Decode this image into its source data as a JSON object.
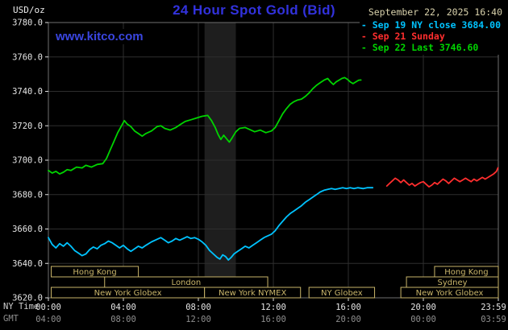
{
  "header": {
    "units": "USD/oz",
    "title": "24 Hour Spot Gold (Bid)",
    "datetime": "September 22, 2025 16:40",
    "watermark": "www.kitco.com"
  },
  "legend": [
    {
      "label": "Sep 19 NY close 3684.00",
      "color": "#00c3ff"
    },
    {
      "label": "Sep 21 Sunday",
      "color": "#ff2e2e"
    },
    {
      "label": "Sep 22 Last 3746.60",
      "color": "#00d400"
    }
  ],
  "axes": {
    "ny_label": "NY Time",
    "gmt_label": "GMT",
    "y_ticks": [
      "3780.0",
      "3760.0",
      "3740.0",
      "3720.0",
      "3700.0",
      "3680.0",
      "3660.0",
      "3640.0",
      "3620.0"
    ],
    "ny_ticks": [
      "00:00",
      "04:00",
      "08:00",
      "12:00",
      "16:00",
      "20:00",
      "23:59"
    ],
    "gmt_ticks": [
      "04:00",
      "08:00",
      "12:00",
      "16:00",
      "20:00",
      "00:00",
      "03:59"
    ]
  },
  "chart_data": {
    "type": "line",
    "title": "24 Hour Spot Gold (Bid)",
    "xlabel": "NY Time (hours, 00:00-23:59)",
    "ylabel": "USD/oz",
    "xlim": [
      0,
      24
    ],
    "ylim": [
      3620,
      3780
    ],
    "y_tick_step": 20,
    "x_tick_hours": [
      0,
      4,
      8,
      12,
      16,
      20,
      24
    ],
    "grid": true,
    "legend_position": "top-right",
    "colors": {
      "band": "#1e1e1e",
      "grid": "#2e2e2e",
      "frame": "#6f6f6f",
      "session": "#c9b56a",
      "tick": "#e0e0e0"
    },
    "shaded_band": {
      "start": 8.33,
      "end": 10.0
    },
    "sessions": [
      {
        "label": "Hong Kong",
        "row": 0,
        "start": 0.15,
        "end": 4.8
      },
      {
        "label": "Hong Kong",
        "row": 0,
        "start": 20.6,
        "end": 24
      },
      {
        "label": "London",
        "row": 1,
        "start": 3.0,
        "end": 11.7
      },
      {
        "label": "Sydney",
        "row": 1,
        "start": 19.1,
        "end": 24
      },
      {
        "label": "New York Globex",
        "row": 2,
        "start": 0.15,
        "end": 8.33
      },
      {
        "label": "New York NYMEX",
        "row": 2,
        "start": 8.33,
        "end": 13.45
      },
      {
        "label": "NY Globex",
        "row": 2,
        "start": 13.9,
        "end": 17.4
      },
      {
        "label": "New York Globex",
        "row": 2,
        "start": 18.8,
        "end": 24
      }
    ],
    "series": [
      {
        "id": "sep19",
        "name": "Sep 19 NY close 3684.00",
        "color": "#00c3ff",
        "points": [
          [
            0.0,
            3655
          ],
          [
            0.2,
            3651
          ],
          [
            0.4,
            3649
          ],
          [
            0.6,
            3651.5
          ],
          [
            0.8,
            3650
          ],
          [
            1.0,
            3652
          ],
          [
            1.2,
            3650
          ],
          [
            1.4,
            3647.5
          ],
          [
            1.6,
            3646
          ],
          [
            1.8,
            3644.5
          ],
          [
            2.0,
            3645.5
          ],
          [
            2.2,
            3648
          ],
          [
            2.4,
            3649.5
          ],
          [
            2.6,
            3648.5
          ],
          [
            2.8,
            3650.5
          ],
          [
            3.0,
            3651.5
          ],
          [
            3.2,
            3653
          ],
          [
            3.4,
            3652
          ],
          [
            3.6,
            3650.5
          ],
          [
            3.8,
            3649
          ],
          [
            4.0,
            3650.5
          ],
          [
            4.2,
            3648.5
          ],
          [
            4.4,
            3647
          ],
          [
            4.6,
            3648.5
          ],
          [
            4.8,
            3650
          ],
          [
            5.0,
            3649
          ],
          [
            5.2,
            3650.5
          ],
          [
            5.5,
            3652.5
          ],
          [
            5.8,
            3654
          ],
          [
            6.0,
            3655
          ],
          [
            6.2,
            3653.5
          ],
          [
            6.4,
            3652
          ],
          [
            6.6,
            3653
          ],
          [
            6.8,
            3654.5
          ],
          [
            7.0,
            3653.5
          ],
          [
            7.2,
            3654.5
          ],
          [
            7.4,
            3655.5
          ],
          [
            7.6,
            3654.5
          ],
          [
            7.8,
            3655
          ],
          [
            8.0,
            3654
          ],
          [
            8.2,
            3652.5
          ],
          [
            8.4,
            3650.5
          ],
          [
            8.6,
            3647.5
          ],
          [
            8.8,
            3645.5
          ],
          [
            9.0,
            3643.5
          ],
          [
            9.15,
            3642.5
          ],
          [
            9.3,
            3645
          ],
          [
            9.45,
            3644
          ],
          [
            9.6,
            3642
          ],
          [
            9.75,
            3643.5
          ],
          [
            9.9,
            3645.5
          ],
          [
            10.1,
            3647
          ],
          [
            10.3,
            3648.5
          ],
          [
            10.5,
            3650
          ],
          [
            10.7,
            3649
          ],
          [
            10.9,
            3650.5
          ],
          [
            11.1,
            3652
          ],
          [
            11.3,
            3653.5
          ],
          [
            11.5,
            3655
          ],
          [
            11.7,
            3656
          ],
          [
            11.9,
            3657
          ],
          [
            12.1,
            3659
          ],
          [
            12.3,
            3662
          ],
          [
            12.5,
            3664.5
          ],
          [
            12.7,
            3667
          ],
          [
            12.9,
            3669
          ],
          [
            13.1,
            3670.5
          ],
          [
            13.3,
            3672
          ],
          [
            13.5,
            3673.5
          ],
          [
            13.7,
            3675.5
          ],
          [
            13.9,
            3677
          ],
          [
            14.1,
            3678.5
          ],
          [
            14.3,
            3680
          ],
          [
            14.5,
            3681.5
          ],
          [
            14.7,
            3682.5
          ],
          [
            14.9,
            3683
          ],
          [
            15.1,
            3683.5
          ],
          [
            15.3,
            3683
          ],
          [
            15.5,
            3683.5
          ],
          [
            15.7,
            3684
          ],
          [
            15.9,
            3683.5
          ],
          [
            16.1,
            3684
          ],
          [
            16.3,
            3683.5
          ],
          [
            16.5,
            3684
          ],
          [
            16.8,
            3683.5
          ],
          [
            17.0,
            3684
          ],
          [
            17.3,
            3684
          ]
        ]
      },
      {
        "id": "sep21",
        "name": "Sep 21 Sunday",
        "color": "#ff2e2e",
        "points": [
          [
            18.05,
            3685
          ],
          [
            18.2,
            3686.5
          ],
          [
            18.35,
            3688
          ],
          [
            18.5,
            3689.5
          ],
          [
            18.65,
            3688.5
          ],
          [
            18.8,
            3687
          ],
          [
            18.95,
            3688.5
          ],
          [
            19.1,
            3687
          ],
          [
            19.25,
            3685.5
          ],
          [
            19.4,
            3686.5
          ],
          [
            19.55,
            3685
          ],
          [
            19.7,
            3686
          ],
          [
            19.85,
            3687
          ],
          [
            20.0,
            3687.5
          ],
          [
            20.15,
            3686
          ],
          [
            20.3,
            3684.5
          ],
          [
            20.45,
            3685.5
          ],
          [
            20.6,
            3687
          ],
          [
            20.75,
            3686
          ],
          [
            20.9,
            3687.5
          ],
          [
            21.05,
            3689
          ],
          [
            21.2,
            3688
          ],
          [
            21.35,
            3686.5
          ],
          [
            21.5,
            3688
          ],
          [
            21.65,
            3689.5
          ],
          [
            21.8,
            3688.5
          ],
          [
            21.95,
            3687.5
          ],
          [
            22.1,
            3688.5
          ],
          [
            22.25,
            3689.5
          ],
          [
            22.4,
            3688.5
          ],
          [
            22.55,
            3687.5
          ],
          [
            22.7,
            3689
          ],
          [
            22.85,
            3688
          ],
          [
            23.0,
            3689
          ],
          [
            23.15,
            3690
          ],
          [
            23.3,
            3689
          ],
          [
            23.45,
            3690
          ],
          [
            23.6,
            3691
          ],
          [
            23.75,
            3692
          ],
          [
            23.9,
            3693.5
          ],
          [
            23.98,
            3695.5
          ]
        ]
      },
      {
        "id": "sep22",
        "name": "Sep 22 Last 3746.60",
        "color": "#00d400",
        "points": [
          [
            0.0,
            3694
          ],
          [
            0.2,
            3692.5
          ],
          [
            0.4,
            3693.5
          ],
          [
            0.6,
            3692
          ],
          [
            0.8,
            3693
          ],
          [
            1.0,
            3694.5
          ],
          [
            1.2,
            3694
          ],
          [
            1.5,
            3696
          ],
          [
            1.8,
            3695.5
          ],
          [
            2.0,
            3697
          ],
          [
            2.3,
            3696
          ],
          [
            2.6,
            3697.5
          ],
          [
            2.9,
            3698
          ],
          [
            3.1,
            3701
          ],
          [
            3.3,
            3706
          ],
          [
            3.5,
            3711
          ],
          [
            3.7,
            3716
          ],
          [
            3.9,
            3720
          ],
          [
            4.05,
            3723
          ],
          [
            4.2,
            3721
          ],
          [
            4.4,
            3719.5
          ],
          [
            4.6,
            3717
          ],
          [
            4.8,
            3715.5
          ],
          [
            5.0,
            3714
          ],
          [
            5.2,
            3715.5
          ],
          [
            5.5,
            3717
          ],
          [
            5.8,
            3719.5
          ],
          [
            6.0,
            3720
          ],
          [
            6.2,
            3718.5
          ],
          [
            6.5,
            3717.5
          ],
          [
            6.8,
            3719
          ],
          [
            7.0,
            3720.5
          ],
          [
            7.3,
            3722.5
          ],
          [
            7.6,
            3723.5
          ],
          [
            7.9,
            3724.5
          ],
          [
            8.2,
            3725.5
          ],
          [
            8.5,
            3726
          ],
          [
            8.7,
            3723
          ],
          [
            8.9,
            3719
          ],
          [
            9.05,
            3715
          ],
          [
            9.2,
            3712
          ],
          [
            9.35,
            3714.5
          ],
          [
            9.5,
            3712.5
          ],
          [
            9.65,
            3710.5
          ],
          [
            9.8,
            3713
          ],
          [
            10.0,
            3716.5
          ],
          [
            10.2,
            3718.5
          ],
          [
            10.5,
            3719
          ],
          [
            10.8,
            3717.5
          ],
          [
            11.0,
            3716.5
          ],
          [
            11.3,
            3717.5
          ],
          [
            11.6,
            3716
          ],
          [
            11.9,
            3717
          ],
          [
            12.1,
            3719
          ],
          [
            12.3,
            3723
          ],
          [
            12.5,
            3727
          ],
          [
            12.7,
            3730
          ],
          [
            12.9,
            3732.5
          ],
          [
            13.1,
            3734
          ],
          [
            13.3,
            3735
          ],
          [
            13.5,
            3735.5
          ],
          [
            13.7,
            3737
          ],
          [
            13.9,
            3739
          ],
          [
            14.1,
            3741.5
          ],
          [
            14.3,
            3743.5
          ],
          [
            14.5,
            3745
          ],
          [
            14.7,
            3746.5
          ],
          [
            14.9,
            3747.5
          ],
          [
            15.05,
            3745.5
          ],
          [
            15.2,
            3744
          ],
          [
            15.35,
            3745.5
          ],
          [
            15.5,
            3746.5
          ],
          [
            15.65,
            3747.5
          ],
          [
            15.8,
            3748
          ],
          [
            15.95,
            3747
          ],
          [
            16.1,
            3745.5
          ],
          [
            16.25,
            3744.5
          ],
          [
            16.4,
            3745.5
          ],
          [
            16.55,
            3746.5
          ],
          [
            16.67,
            3746.6
          ]
        ]
      }
    ]
  }
}
